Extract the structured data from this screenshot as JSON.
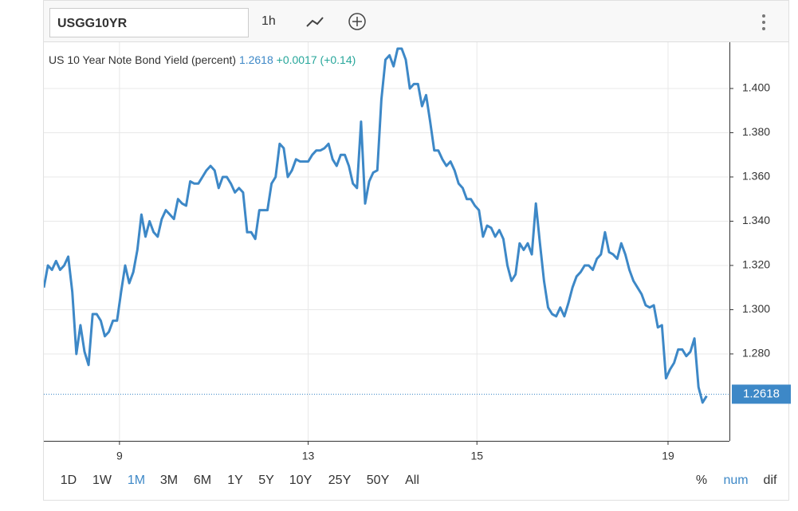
{
  "toolbar": {
    "symbol": "USGG10YR",
    "interval": "1h"
  },
  "chart_data": {
    "type": "line",
    "series": [
      {
        "name": "US 10 Year Note Bond Yield (percent)",
        "color": "#3d88c7",
        "values": [
          1.31,
          1.32,
          1.318,
          1.322,
          1.318,
          1.32,
          1.324,
          1.308,
          1.28,
          1.293,
          1.281,
          1.275,
          1.298,
          1.298,
          1.295,
          1.288,
          1.29,
          1.295,
          1.295,
          1.308,
          1.32,
          1.312,
          1.317,
          1.327,
          1.343,
          1.333,
          1.34,
          1.335,
          1.333,
          1.341,
          1.345,
          1.343,
          1.341,
          1.35,
          1.348,
          1.347,
          1.358,
          1.357,
          1.357,
          1.36,
          1.363,
          1.365,
          1.363,
          1.355,
          1.36,
          1.36,
          1.357,
          1.353,
          1.355,
          1.353,
          1.335,
          1.335,
          1.332,
          1.345,
          1.345,
          1.345,
          1.357,
          1.36,
          1.375,
          1.373,
          1.36,
          1.363,
          1.368,
          1.367,
          1.367,
          1.367,
          1.37,
          1.372,
          1.372,
          1.373,
          1.375,
          1.368,
          1.365,
          1.37,
          1.37,
          1.365,
          1.357,
          1.355,
          1.385,
          1.348,
          1.358,
          1.362,
          1.363,
          1.395,
          1.413,
          1.415,
          1.41,
          1.418,
          1.418,
          1.413,
          1.4,
          1.402,
          1.402,
          1.392,
          1.397,
          1.385,
          1.372,
          1.372,
          1.368,
          1.365,
          1.367,
          1.363,
          1.357,
          1.355,
          1.35,
          1.35,
          1.347,
          1.345,
          1.333,
          1.338,
          1.337,
          1.333,
          1.336,
          1.332,
          1.32,
          1.313,
          1.316,
          1.33,
          1.327,
          1.33,
          1.325,
          1.348,
          1.33,
          1.313,
          1.301,
          1.298,
          1.297,
          1.301,
          1.297,
          1.303,
          1.31,
          1.315,
          1.317,
          1.32,
          1.32,
          1.318,
          1.323,
          1.325,
          1.335,
          1.326,
          1.325,
          1.323,
          1.33,
          1.325,
          1.318,
          1.313,
          1.31,
          1.307,
          1.302,
          1.301,
          1.302,
          1.292,
          1.293,
          1.269,
          1.273,
          1.276,
          1.282,
          1.282,
          1.279,
          1.281,
          1.287,
          1.265,
          1.258,
          1.261
        ]
      }
    ],
    "last_value": 1.2618,
    "change": "+0.0017",
    "change_pct": "(+0.14)",
    "change_color": "#26a69a",
    "xlim": [
      0,
      168.6
    ],
    "xticks": [
      {
        "value": 18.6,
        "label": "9"
      },
      {
        "value": 65,
        "label": "13"
      },
      {
        "value": 106.5,
        "label": "15"
      },
      {
        "value": 153.5,
        "label": "19"
      }
    ],
    "ylim": [
      1.2407,
      1.4209
    ],
    "yticks": [
      {
        "value": 1.28,
        "label": "1.280"
      },
      {
        "value": 1.3,
        "label": "1.300"
      },
      {
        "value": 1.32,
        "label": "1.320"
      },
      {
        "value": 1.34,
        "label": "1.340"
      },
      {
        "value": 1.36,
        "label": "1.360"
      },
      {
        "value": 1.38,
        "label": "1.380"
      },
      {
        "value": 1.4,
        "label": "1.400"
      }
    ],
    "grid": true
  },
  "ranges": [
    "1D",
    "1W",
    "1M",
    "3M",
    "6M",
    "1Y",
    "5Y",
    "10Y",
    "25Y",
    "50Y",
    "All"
  ],
  "active_range": "1M",
  "modes": [
    "%",
    "num",
    "dif"
  ],
  "active_mode": "num"
}
